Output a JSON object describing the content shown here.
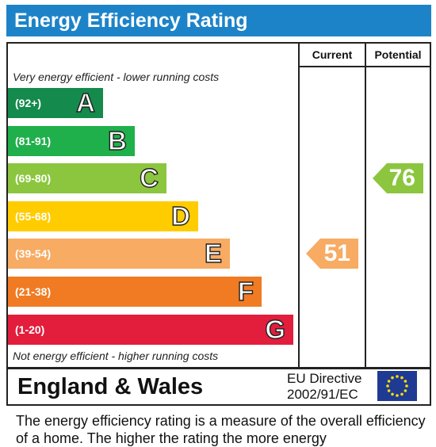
{
  "title": "Energy Efficiency Rating",
  "columns": {
    "current": "Current",
    "potential": "Potential"
  },
  "top_note": "Very energy efficient - lower running costs",
  "bottom_note": "Not energy efficient - higher running costs",
  "chart_data": {
    "type": "bar",
    "title": "Energy Efficiency Rating",
    "bands": [
      {
        "range": "(92+)",
        "letter": "A",
        "color": "#148a4c"
      },
      {
        "range": "(81-91)",
        "letter": "B",
        "color": "#1fb04b"
      },
      {
        "range": "(69-80)",
        "letter": "C",
        "color": "#8cc63f"
      },
      {
        "range": "(55-68)",
        "letter": "D",
        "color": "#ffcc00"
      },
      {
        "range": "(39-54)",
        "letter": "E",
        "color": "#f7ab63"
      },
      {
        "range": "(21-38)",
        "letter": "F",
        "color": "#f07b22"
      },
      {
        "range": "(1-20)",
        "letter": "G",
        "color": "#e31d3c"
      }
    ],
    "current": {
      "value": 51,
      "band": "E",
      "color": "#f7ab63"
    },
    "potential": {
      "value": 76,
      "band": "C",
      "color": "#8cc63f"
    }
  },
  "footer": {
    "region": "England & Wales",
    "directive_line1": "EU Directive",
    "directive_line2": "2002/91/EC",
    "flag_color": "#1f3a93",
    "star_color": "#ffdd00"
  },
  "caption": "The energy efficiency rating is a measure of the overall efficiency of a home. The higher the rating the more energy"
}
